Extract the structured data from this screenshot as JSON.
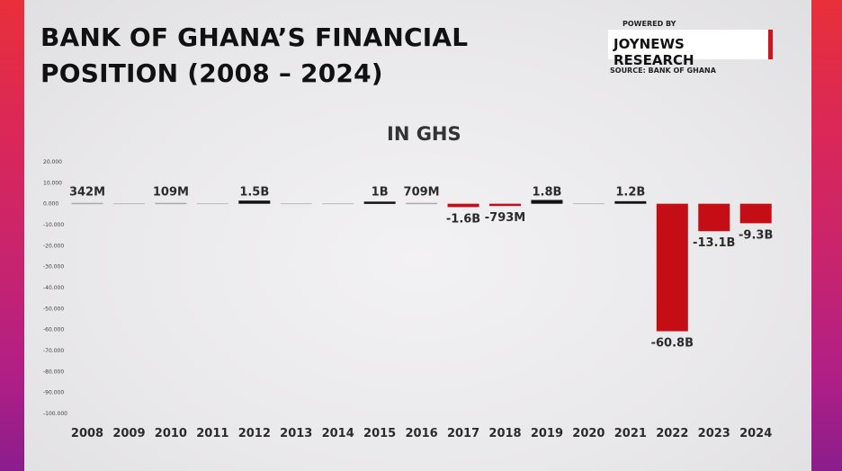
{
  "header": {
    "title_line1": "BANK OF GHANA’S FINANCIAL",
    "title_line2": "POSITION (2008 – 2024)",
    "powered_by": "POWERED BY",
    "brand": "JOYNEWS RESEARCH",
    "source": "SOURCE: BANK OF GHANA"
  },
  "colors": {
    "accent": "#d0121b",
    "positive": "#111111",
    "negative": "#c40d14"
  },
  "chart_data": {
    "type": "bar",
    "title": "",
    "subtitle": "IN GHS",
    "xlabel": "",
    "ylabel": "",
    "ylim": [
      -100000,
      20000
    ],
    "y_ticks": [
      "20.000",
      "10.000",
      "0.000",
      "-10.000",
      "-20.000",
      "-30.000",
      "-40.000",
      "-50.000",
      "-60.000",
      "-70.000",
      "-80.000",
      "-90.000",
      "-100.000"
    ],
    "y_tick_values": [
      20000,
      10000,
      0,
      -10000,
      -20000,
      -30000,
      -40000,
      -50000,
      -60000,
      -70000,
      -80000,
      -90000,
      -100000
    ],
    "categories": [
      "2008",
      "2009",
      "2010",
      "2011",
      "2012",
      "2013",
      "2014",
      "2015",
      "2016",
      "2017",
      "2018",
      "2019",
      "2020",
      "2021",
      "2022",
      "2023",
      "2024"
    ],
    "values": [
      342,
      0,
      109,
      0,
      1500,
      0,
      0,
      1000,
      709,
      -1600,
      -793,
      1800,
      0,
      1200,
      -60800,
      -13100,
      -9300
    ],
    "data_labels": [
      "342M",
      "",
      "109M",
      "",
      "1.5B",
      "",
      "",
      "1B",
      "709M",
      "-1.6B",
      "-793M",
      "1.8B",
      "",
      "1.2B",
      "-60.8B",
      "-13.1B",
      "-9.3B"
    ],
    "grid": false,
    "legend": "none"
  }
}
